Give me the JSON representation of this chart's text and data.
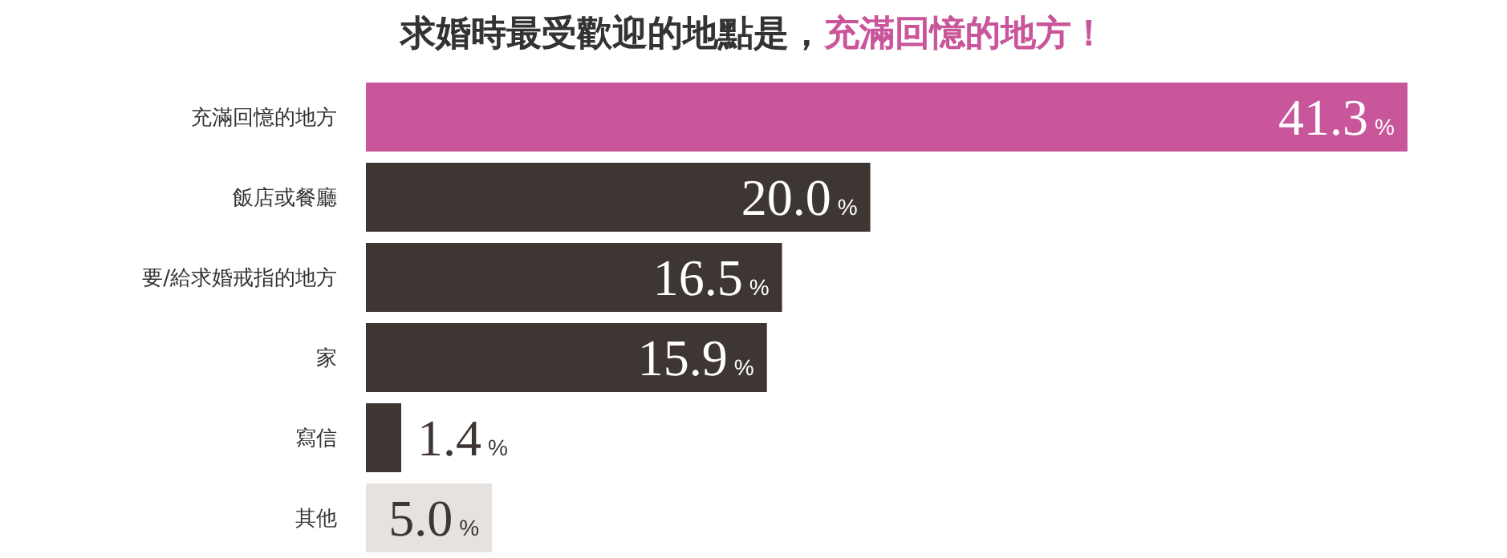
{
  "chart_data": {
    "type": "bar",
    "orientation": "horizontal",
    "title": "求婚時最受歡迎的地點是，",
    "subtitle": "充滿回憶的地方！",
    "categories": [
      "充滿回憶的地方",
      "飯店或餐廳",
      "要/給求婚戒指的地方",
      "家",
      "寫信",
      "其他"
    ],
    "values": [
      41.3,
      20.0,
      16.5,
      15.9,
      1.4,
      5.0
    ],
    "colors": [
      "#c9559a",
      "#3e3633",
      "#3e3633",
      "#3e3633",
      "#3e3633",
      "#e6e2e0"
    ],
    "value_labels": [
      "41.3%",
      "20.0%",
      "16.5%",
      "15.9%",
      "1.4%",
      "5.0%"
    ],
    "xlim": [
      0,
      41.3
    ],
    "grid": false,
    "legend": false
  }
}
